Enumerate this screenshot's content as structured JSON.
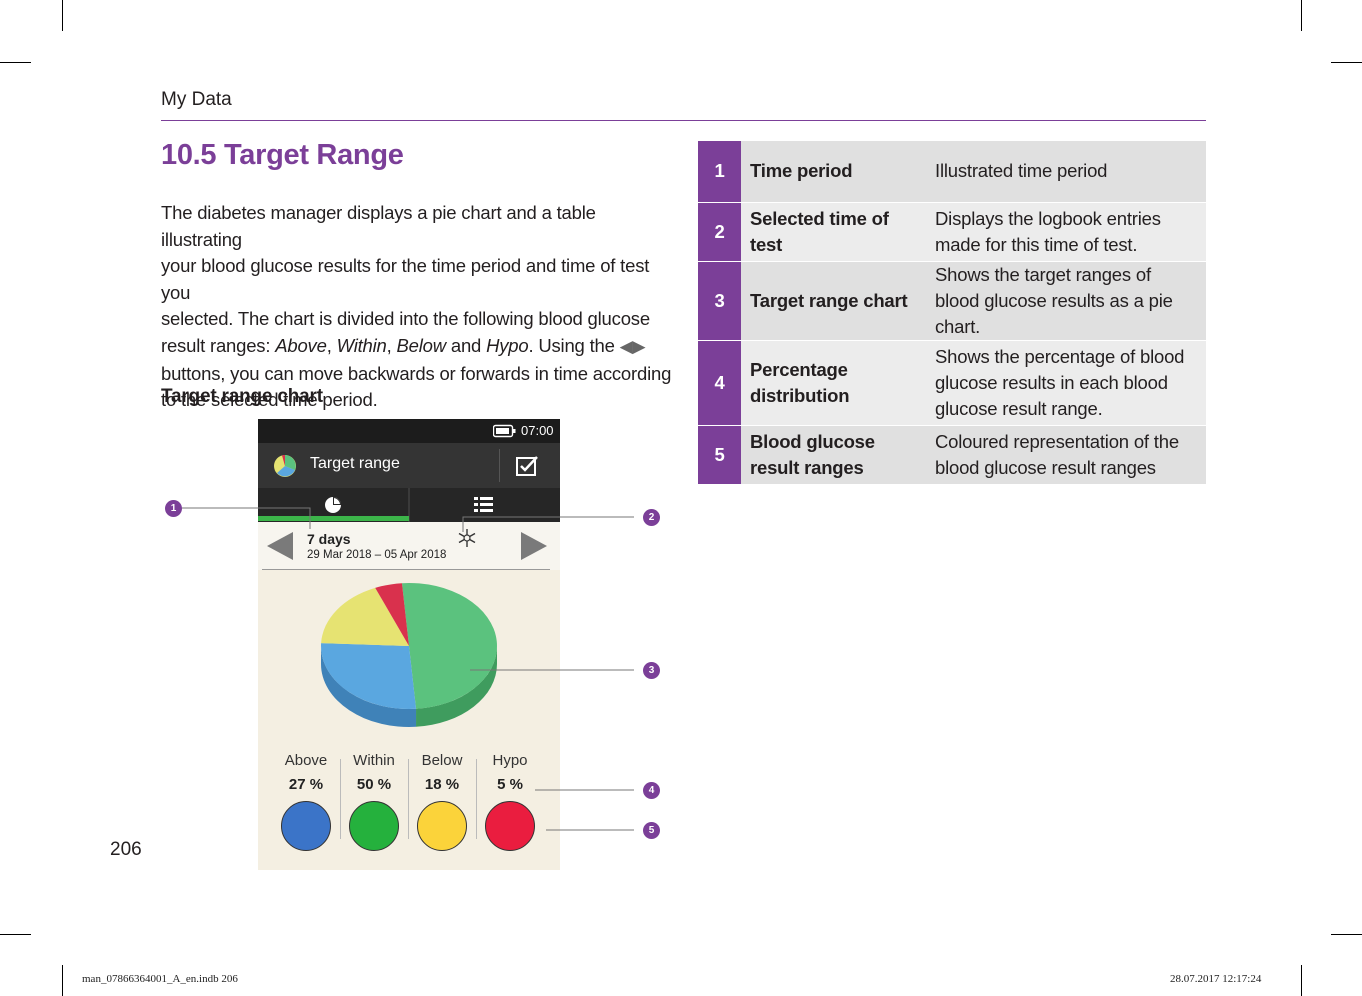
{
  "header": {
    "section": "My Data"
  },
  "heading": "10.5 Target Range",
  "intro": {
    "line1": "The diabetes manager displays a pie chart and a table illustrating",
    "line2": "your blood glucose results for the time period and time of test you",
    "line3": "selected. The chart is divided into the following blood glucose",
    "line4_prefix": "result ranges: ",
    "range_above": "Above",
    "range_within": "Within",
    "range_below": "Below",
    "and_word": " and ",
    "range_hypo": "Hypo",
    "using_the": ". Using the ",
    "line5": "buttons, you can move backwards or forwards in time according",
    "line6": "to the selected time period."
  },
  "subheading": "Target range chart",
  "page_number": "206",
  "footer": {
    "file": "man_07866364001_A_en.indb   206",
    "date": "28.07.2017   12:17:24"
  },
  "device": {
    "time": "07:00",
    "app_title": "Target range",
    "period_label": "7 days",
    "date_range": "29 Mar 2018 – 05 Apr 2018",
    "legend": [
      {
        "label": "Above",
        "percent": "27 %",
        "color": "#3b74c8"
      },
      {
        "label": "Within",
        "percent": "50 %",
        "color": "#25b13d"
      },
      {
        "label": "Below",
        "percent": "18 %",
        "color": "#fbd33a"
      },
      {
        "label": "Hypo",
        "percent": "5 %",
        "color": "#ea1d3f"
      }
    ],
    "pie": [
      {
        "range": "Within",
        "value": 50,
        "color": "#5bc27e",
        "side": "#3f9c5e"
      },
      {
        "range": "Above",
        "value": 27,
        "color": "#5aa7e0",
        "side": "#3f82b8"
      },
      {
        "range": "Below",
        "value": 18,
        "color": "#e6e372",
        "side": "#c3be52"
      },
      {
        "range": "Hypo",
        "value": 5,
        "color": "#d9314d",
        "side": "#b02038"
      }
    ]
  },
  "callouts": [
    "1",
    "2",
    "3",
    "4",
    "5"
  ],
  "table": [
    {
      "num": "1",
      "term": "Time period",
      "desc": "Illustrated time period"
    },
    {
      "num": "2",
      "term": "Selected time of test",
      "desc": "Displays the logbook entries made for this time of test."
    },
    {
      "num": "3",
      "term": "Target range chart",
      "desc": "Shows the target ranges of blood glucose results as a pie chart."
    },
    {
      "num": "4",
      "term": "Percentage distribution",
      "desc": "Shows the percentage of blood glucose results in each blood glucose result range."
    },
    {
      "num": "5",
      "term": "Blood glucose result ranges",
      "desc": "Coloured representation of the blood glucose result ranges"
    }
  ]
}
